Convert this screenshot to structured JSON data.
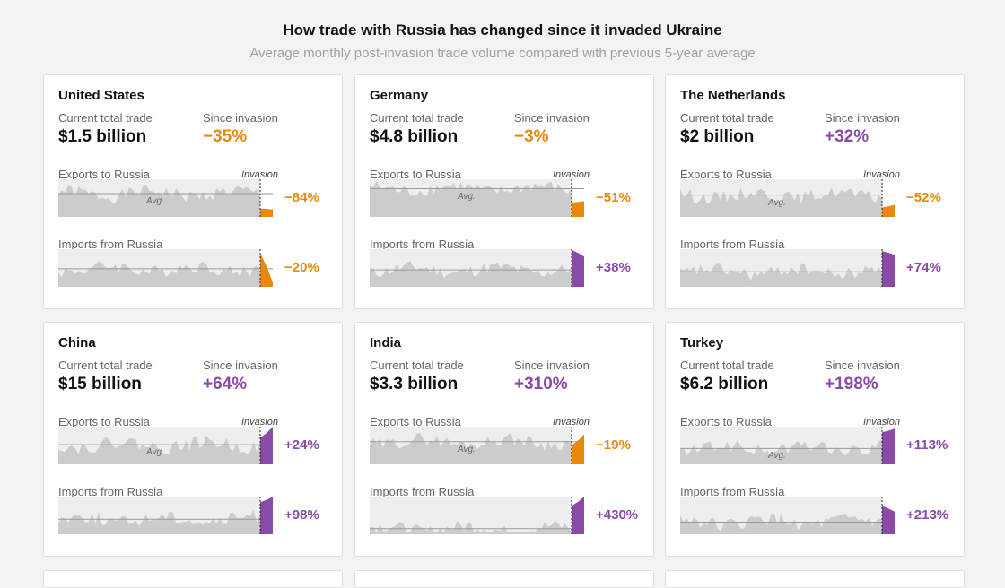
{
  "title": "How trade with Russia has changed since it invaded Ukraine",
  "subtitle": "Average monthly post-invasion trade volume compared with previous 5-year average",
  "labels": {
    "current_total": "Current total trade",
    "since_invasion": "Since invasion",
    "exports": "Exports to Russia",
    "imports": "Imports from Russia",
    "invasion": "Invasion",
    "avg": "Avg."
  },
  "colors": {
    "decrease": "#e8890c",
    "increase": "#8a4aa7",
    "history": "#cccccc",
    "panel": "#eeeeee",
    "avg_line": "#999999"
  },
  "chart_data": [
    {
      "type": "area",
      "country": "United States",
      "current_total": "$1.5 billion",
      "since_invasion": "−35%",
      "exports": {
        "change": "−84%",
        "avg": 0.62,
        "post": 0.22,
        "end": 0.2
      },
      "imports": {
        "change": "−20%",
        "avg": 0.48,
        "post": 0.9,
        "end": 0.1
      }
    },
    {
      "type": "area",
      "country": "Germany",
      "current_total": "$4.8 billion",
      "since_invasion": "−3%",
      "exports": {
        "change": "−51%",
        "avg": 0.75,
        "post": 0.38,
        "end": 0.42
      },
      "imports": {
        "change": "+38%",
        "avg": 0.45,
        "post": 0.98,
        "end": 0.8
      }
    },
    {
      "type": "area",
      "country": "The Netherlands",
      "current_total": "$2 billion",
      "since_invasion": "+32%",
      "exports": {
        "change": "−52%",
        "avg": 0.58,
        "post": 0.25,
        "end": 0.32
      },
      "imports": {
        "change": "+74%",
        "avg": 0.4,
        "post": 0.95,
        "end": 0.85
      }
    },
    {
      "type": "area",
      "country": "China",
      "current_total": "$15 billion",
      "since_invasion": "+64%",
      "exports": {
        "change": "+24%",
        "avg": 0.52,
        "post": 0.7,
        "end": 1.0
      },
      "imports": {
        "change": "+98%",
        "avg": 0.4,
        "post": 0.85,
        "end": 1.0
      }
    },
    {
      "type": "area",
      "country": "India",
      "current_total": "$3.3 billion",
      "since_invasion": "+310%",
      "exports": {
        "change": "−19%",
        "avg": 0.6,
        "post": 0.5,
        "end": 0.8
      },
      "imports": {
        "change": "+430%",
        "avg": 0.15,
        "post": 0.75,
        "end": 1.0
      }
    },
    {
      "type": "area",
      "country": "Turkey",
      "current_total": "$6.2 billion",
      "since_invasion": "+198%",
      "exports": {
        "change": "+113%",
        "avg": 0.42,
        "post": 0.85,
        "end": 0.95
      },
      "imports": {
        "change": "+213%",
        "avg": 0.32,
        "post": 0.75,
        "end": 0.6
      }
    }
  ]
}
